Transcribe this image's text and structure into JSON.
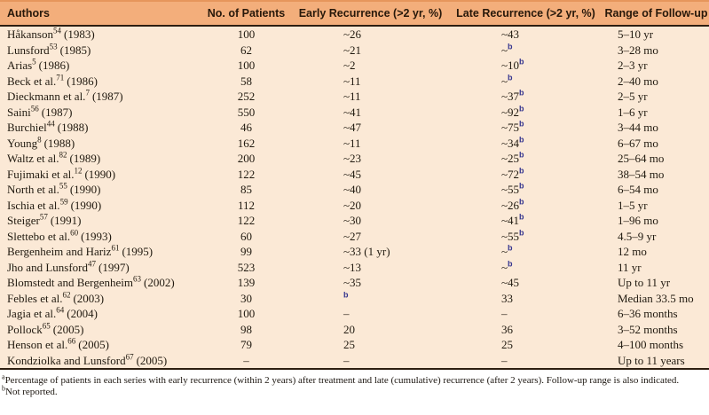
{
  "table": {
    "columns": [
      {
        "label": "Authors"
      },
      {
        "label": "No. of Patients"
      },
      {
        "label": "Early Recurrence (>2 yr, %)"
      },
      {
        "label": "Late Recurrence (>2 yr, %)"
      },
      {
        "label": "Range of Follow-up"
      }
    ],
    "rows": [
      {
        "author": "Håkanson",
        "ref": "54",
        "year": "(1983)",
        "patients": "100",
        "early": "~26",
        "early_sup": "",
        "late": "~43",
        "late_sup": "",
        "followup": "5–10 yr"
      },
      {
        "author": "Lunsford",
        "ref": "53",
        "year": "(1985)",
        "patients": "62",
        "early": "~21",
        "early_sup": "",
        "late": "~",
        "late_sup": "b",
        "followup": "3–28 mo"
      },
      {
        "author": "Arias",
        "ref": "5",
        "year": "(1986)",
        "patients": "100",
        "early": "~2",
        "early_sup": "",
        "late": "~10",
        "late_sup": "b",
        "followup": "2–3 yr"
      },
      {
        "author": "Beck et al.",
        "ref": "71",
        "year": "(1986)",
        "patients": "58",
        "early": "~11",
        "early_sup": "",
        "late": "~",
        "late_sup": "b",
        "followup": "2–40 mo"
      },
      {
        "author": "Dieckmann et al.",
        "ref": "7",
        "year": "(1987)",
        "patients": "252",
        "early": "~11",
        "early_sup": "",
        "late": "~37",
        "late_sup": "b",
        "followup": "2–5 yr"
      },
      {
        "author": "Saini",
        "ref": "56",
        "year": "(1987)",
        "patients": "550",
        "early": "~41",
        "early_sup": "",
        "late": "~92",
        "late_sup": "b",
        "followup": "1–6 yr"
      },
      {
        "author": "Burchiel",
        "ref": "44",
        "year": "(1988)",
        "patients": "46",
        "early": "~47",
        "early_sup": "",
        "late": "~75",
        "late_sup": "b",
        "followup": "3–44 mo"
      },
      {
        "author": "Young",
        "ref": "8",
        "year": "(1988)",
        "patients": "162",
        "early": "~11",
        "early_sup": "",
        "late": "~34",
        "late_sup": "b",
        "followup": "6–67 mo"
      },
      {
        "author": "Waltz et al.",
        "ref": "82",
        "year": "(1989)",
        "patients": "200",
        "early": "~23",
        "early_sup": "",
        "late": "~25",
        "late_sup": "b",
        "followup": "25–64 mo"
      },
      {
        "author": "Fujimaki et al.",
        "ref": "12",
        "year": "(1990)",
        "patients": "122",
        "early": "~45",
        "early_sup": "",
        "late": "~72",
        "late_sup": "b",
        "followup": "38–54 mo"
      },
      {
        "author": "North et al.",
        "ref": "55",
        "year": "(1990)",
        "patients": "85",
        "early": "~40",
        "early_sup": "",
        "late": "~55",
        "late_sup": "b",
        "followup": "6–54 mo"
      },
      {
        "author": "Ischia et al.",
        "ref": "59",
        "year": "(1990)",
        "patients": "112",
        "early": "~20",
        "early_sup": "",
        "late": "~26",
        "late_sup": "b",
        "followup": "1–5 yr"
      },
      {
        "author": "Steiger",
        "ref": "57",
        "year": "(1991)",
        "patients": "122",
        "early": "~30",
        "early_sup": "",
        "late": "~41",
        "late_sup": "b",
        "followup": "1–96 mo"
      },
      {
        "author": "Slettebo et al.",
        "ref": "60",
        "year": "(1993)",
        "patients": "60",
        "early": "~27",
        "early_sup": "",
        "late": "~55",
        "late_sup": "b",
        "followup": "4.5–9 yr"
      },
      {
        "author": "Bergenheim and Hariz",
        "ref": "61",
        "year": "(1995)",
        "patients": "99",
        "early": "~33 (1 yr)",
        "early_sup": "",
        "late": "~",
        "late_sup": "b",
        "followup": "12 mo"
      },
      {
        "author": "Jho and Lunsford",
        "ref": "47",
        "year": "(1997)",
        "patients": "523",
        "early": "~13",
        "early_sup": "",
        "late": "~",
        "late_sup": "b",
        "followup": "11 yr"
      },
      {
        "author": "Blomstedt and Bergenheim",
        "ref": "63",
        "year": "(2002)",
        "patients": "139",
        "early": "~35",
        "early_sup": "",
        "late": "~45",
        "late_sup": "",
        "followup": "Up to 11 yr"
      },
      {
        "author": "Febles et al.",
        "ref": "62",
        "year": "(2003)",
        "patients": "30",
        "early": "",
        "early_sup": "b",
        "late": "33",
        "late_sup": "",
        "followup": "Median 33.5 mo"
      },
      {
        "author": "Jagia et al.",
        "ref": "64",
        "year": "(2004)",
        "patients": "100",
        "early": "–",
        "early_sup": "",
        "late": "–",
        "late_sup": "",
        "followup": "6–36 months"
      },
      {
        "author": "Pollock",
        "ref": "65",
        "year": "(2005)",
        "patients": "98",
        "early": "20",
        "early_sup": "",
        "late": "36",
        "late_sup": "",
        "followup": "3–52 months"
      },
      {
        "author": "Henson et al.",
        "ref": "66",
        "year": "(2005)",
        "patients": "79",
        "early": "25",
        "early_sup": "",
        "late": "25",
        "late_sup": "",
        "followup": "4–100 months"
      },
      {
        "author": "Kondziolka and Lunsford",
        "ref": "67",
        "year": "(2005)",
        "patients": "–",
        "early": "–",
        "early_sup": "",
        "late": "–",
        "late_sup": "",
        "followup": "Up to 11 years"
      }
    ]
  },
  "footnotes": [
    {
      "marker": "a",
      "text": "Percentage of patients in each series with early recurrence (within 2 years) after treatment and late (cumulative) recurrence (after 2 years). Follow-up range is also indicated."
    },
    {
      "marker": "b",
      "text": "Not reported."
    }
  ],
  "colors": {
    "header_band": "#f3ae7b",
    "body_band": "#fbe9d6",
    "rule": "#2d1e10",
    "footnote_marker_blue": "#34348e"
  }
}
